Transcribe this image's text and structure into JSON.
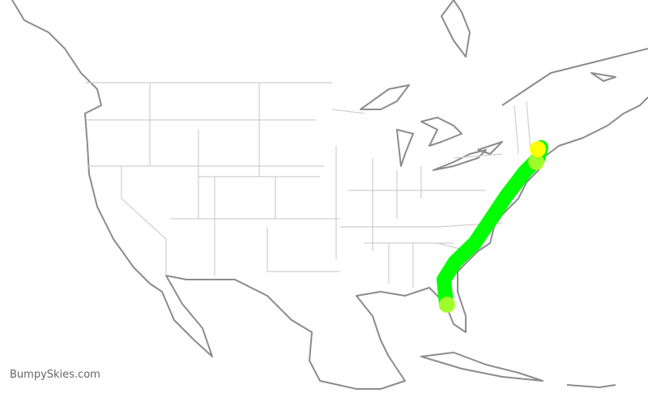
{
  "credit": "BumpySkies.com",
  "colors": {
    "route": "#00ff00",
    "endpoint_marker": "#adff2f",
    "current_marker": "#ffff00",
    "coastline": "#8c8c8c",
    "state_border": "#cfcfcf"
  },
  "route": {
    "description_visible": false
  }
}
